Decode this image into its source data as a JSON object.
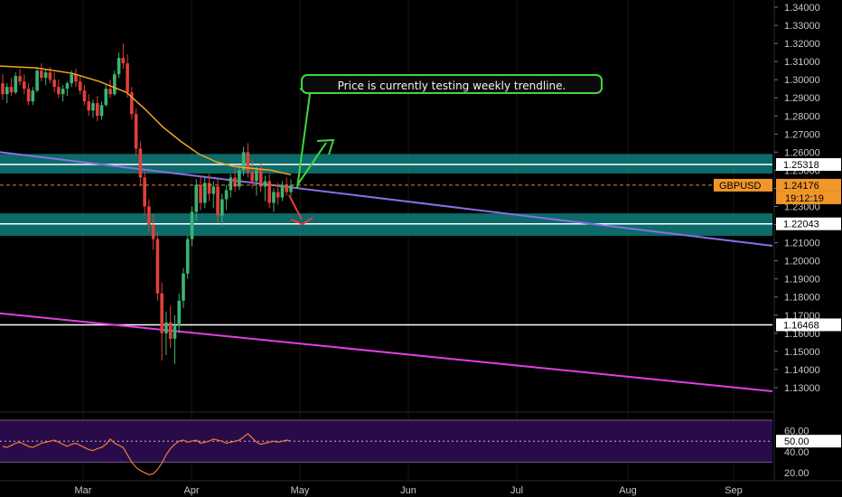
{
  "chart_data": [
    {
      "type": "candlestick",
      "symbol": "GBPUSD",
      "last_price": "1.24176",
      "countdown": "19:12:19",
      "x_ticks": [
        "Mar",
        "Apr",
        "May",
        "Jun",
        "Jul",
        "Aug",
        "Sep"
      ],
      "y_ticks": [
        "1.34000",
        "1.33000",
        "1.32000",
        "1.31000",
        "1.30000",
        "1.29000",
        "1.28000",
        "1.27000",
        "1.26000",
        "1.25000",
        "1.24000",
        "1.23000",
        "1.22000",
        "1.21000",
        "1.20000",
        "1.19000",
        "1.18000",
        "1.17000",
        "1.16000",
        "1.15000",
        "1.14000",
        "1.13000"
      ],
      "ylim": [
        1.122,
        1.342
      ],
      "price_tags": [
        {
          "label": "1.25318",
          "value": 1.25318,
          "style": "white"
        },
        {
          "label": "1.22043",
          "value": 1.22043,
          "style": "white"
        },
        {
          "label": "1.16468",
          "value": 1.16468,
          "style": "white"
        }
      ],
      "zones": [
        {
          "from": 1.2482,
          "to": 1.259,
          "color": "#0e7c7b"
        },
        {
          "from": 1.2138,
          "to": 1.2262,
          "color": "#0e7c7b"
        }
      ],
      "horizontal_lines": [
        {
          "value": 1.25318,
          "color": "#ffffff"
        },
        {
          "value": 1.22043,
          "color": "#ffffff"
        },
        {
          "value": 1.16468,
          "color": "#ffffff"
        }
      ],
      "trendlines": [
        {
          "from": [
            0,
            1.26
          ],
          "to": [
            855,
            1.2083
          ],
          "color": "#8a6fe8"
        },
        {
          "from": [
            0,
            1.171
          ],
          "to": [
            855,
            1.128
          ],
          "color": "#e23ee2"
        }
      ],
      "candles": [
        [
          1.298,
          1.303,
          1.289,
          1.292
        ],
        [
          1.292,
          1.298,
          1.287,
          1.296
        ],
        [
          1.296,
          1.301,
          1.291,
          1.293
        ],
        [
          1.293,
          1.304,
          1.292,
          1.302
        ],
        [
          1.302,
          1.306,
          1.297,
          1.299
        ],
        [
          1.299,
          1.303,
          1.292,
          1.295
        ],
        [
          1.295,
          1.298,
          1.286,
          1.288
        ],
        [
          1.288,
          1.296,
          1.286,
          1.294
        ],
        [
          1.294,
          1.307,
          1.293,
          1.305
        ],
        [
          1.305,
          1.309,
          1.299,
          1.301
        ],
        [
          1.301,
          1.306,
          1.297,
          1.304
        ],
        [
          1.304,
          1.307,
          1.298,
          1.3
        ],
        [
          1.3,
          1.304,
          1.293,
          1.296
        ],
        [
          1.296,
          1.3,
          1.29,
          1.292
        ],
        [
          1.292,
          1.297,
          1.288,
          1.295
        ],
        [
          1.295,
          1.299,
          1.291,
          1.298
        ],
        [
          1.298,
          1.305,
          1.296,
          1.303
        ],
        [
          1.303,
          1.306,
          1.296,
          1.299
        ],
        [
          1.299,
          1.302,
          1.292,
          1.294
        ],
        [
          1.294,
          1.297,
          1.286,
          1.288
        ],
        [
          1.288,
          1.292,
          1.28,
          1.283
        ],
        [
          1.283,
          1.289,
          1.279,
          1.287
        ],
        [
          1.287,
          1.291,
          1.277,
          1.28
        ],
        [
          1.28,
          1.288,
          1.278,
          1.286
        ],
        [
          1.286,
          1.297,
          1.285,
          1.295
        ],
        [
          1.295,
          1.3,
          1.29,
          1.292
        ],
        [
          1.292,
          1.305,
          1.291,
          1.303
        ],
        [
          1.303,
          1.315,
          1.301,
          1.312
        ],
        [
          1.312,
          1.32,
          1.306,
          1.309
        ],
        [
          1.309,
          1.314,
          1.29,
          1.293
        ],
        [
          1.293,
          1.296,
          1.278,
          1.281
        ],
        [
          1.281,
          1.284,
          1.258,
          1.262
        ],
        [
          1.262,
          1.266,
          1.242,
          1.246
        ],
        [
          1.246,
          1.25,
          1.225,
          1.23
        ],
        [
          1.23,
          1.234,
          1.216,
          1.22
        ],
        [
          1.22,
          1.226,
          1.206,
          1.212
        ],
        [
          1.212,
          1.216,
          1.178,
          1.182
        ],
        [
          1.182,
          1.188,
          1.145,
          1.16
        ],
        [
          1.16,
          1.172,
          1.148,
          1.166
        ],
        [
          1.166,
          1.175,
          1.152,
          1.157
        ],
        [
          1.157,
          1.17,
          1.143,
          1.164
        ],
        [
          1.164,
          1.182,
          1.16,
          1.178
        ],
        [
          1.178,
          1.196,
          1.174,
          1.193
        ],
        [
          1.193,
          1.214,
          1.19,
          1.212
        ],
        [
          1.212,
          1.23,
          1.208,
          1.227
        ],
        [
          1.227,
          1.245,
          1.222,
          1.242
        ],
        [
          1.242,
          1.247,
          1.228,
          1.232
        ],
        [
          1.232,
          1.246,
          1.229,
          1.243
        ],
        [
          1.243,
          1.248,
          1.233,
          1.237
        ],
        [
          1.237,
          1.244,
          1.229,
          1.241
        ],
        [
          1.241,
          1.245,
          1.221,
          1.225
        ],
        [
          1.225,
          1.237,
          1.219,
          1.234
        ],
        [
          1.234,
          1.242,
          1.228,
          1.239
        ],
        [
          1.239,
          1.248,
          1.235,
          1.246
        ],
        [
          1.246,
          1.251,
          1.238,
          1.241
        ],
        [
          1.241,
          1.253,
          1.239,
          1.25
        ],
        [
          1.25,
          1.263,
          1.247,
          1.26
        ],
        [
          1.26,
          1.265,
          1.246,
          1.249
        ],
        [
          1.249,
          1.256,
          1.24,
          1.244
        ],
        [
          1.244,
          1.252,
          1.236,
          1.25
        ],
        [
          1.25,
          1.254,
          1.238,
          1.241
        ],
        [
          1.241,
          1.247,
          1.233,
          1.244
        ],
        [
          1.244,
          1.248,
          1.229,
          1.232
        ],
        [
          1.232,
          1.24,
          1.227,
          1.238
        ],
        [
          1.238,
          1.243,
          1.231,
          1.235
        ],
        [
          1.235,
          1.244,
          1.233,
          1.242
        ],
        [
          1.242,
          1.246,
          1.236,
          1.238
        ],
        [
          1.238,
          1.245,
          1.236,
          1.2418
        ]
      ],
      "moving_average": [
        [
          0,
          1.3075
        ],
        [
          40,
          1.3065
        ],
        [
          80,
          1.3035
        ],
        [
          110,
          1.299
        ],
        [
          140,
          1.293
        ],
        [
          160,
          1.284
        ],
        [
          180,
          1.274
        ],
        [
          200,
          1.266
        ],
        [
          220,
          1.259
        ],
        [
          240,
          1.2545
        ],
        [
          260,
          1.252
        ],
        [
          280,
          1.251
        ],
        [
          300,
          1.25
        ],
        [
          322,
          1.2475
        ]
      ],
      "annotation": "Price is currently testing weekly trendline.",
      "rsi": {
        "y_ticks": [
          "60.00",
          "40.00",
          "20.00"
        ],
        "current": "50.00",
        "ylim": [
          14,
          76
        ],
        "band": [
          30,
          70
        ],
        "values": [
          45,
          44,
          46,
          48,
          49,
          47,
          45,
          44,
          46,
          48,
          49,
          50,
          51,
          49,
          47,
          45,
          47,
          48,
          46,
          44,
          42,
          41,
          43,
          44,
          47,
          52,
          48,
          46,
          44,
          37,
          30,
          25,
          22,
          20,
          18,
          19,
          23,
          29,
          37,
          43,
          47,
          50,
          51,
          49,
          50,
          51,
          48,
          49,
          50,
          52,
          51,
          50,
          48,
          49,
          50,
          51,
          54,
          57,
          53,
          49,
          47,
          48,
          49,
          50,
          49,
          50,
          51,
          50
        ]
      }
    }
  ]
}
